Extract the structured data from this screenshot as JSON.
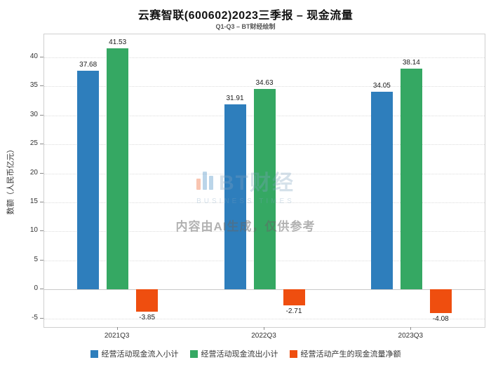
{
  "header": {
    "title": "云赛智联(600602)2023三季报 – 现金流量",
    "subtitle": "Q1-Q3 – BT财经绘制"
  },
  "watermark": {
    "logo_text": "BT财经",
    "logo_sub": "BUSINESS TIMES",
    "disclaimer": "内容由AI生成，仅供参考"
  },
  "chart_data": {
    "type": "bar",
    "categories": [
      "2021Q3",
      "2022Q3",
      "2023Q3"
    ],
    "series": [
      {
        "name": "经营活动现金流入小计",
        "color": "#2e7ebc",
        "values": [
          37.68,
          31.91,
          34.05
        ]
      },
      {
        "name": "经营活动现金流出小计",
        "color": "#35a863",
        "values": [
          41.53,
          34.63,
          38.14
        ]
      },
      {
        "name": "经营活动产生的现金流量净额",
        "color": "#ef4e0f",
        "values": [
          -3.85,
          -2.71,
          -4.08
        ]
      }
    ],
    "title": "云赛智联(600602)2023三季报 – 现金流量",
    "xlabel": "",
    "ylabel": "数额（人民币亿元）",
    "ylim": [
      -6.5,
      44
    ],
    "yticks": [
      -5,
      0,
      5,
      10,
      15,
      20,
      25,
      30,
      35,
      40
    ],
    "grid": true,
    "legend_position": "bottom"
  }
}
